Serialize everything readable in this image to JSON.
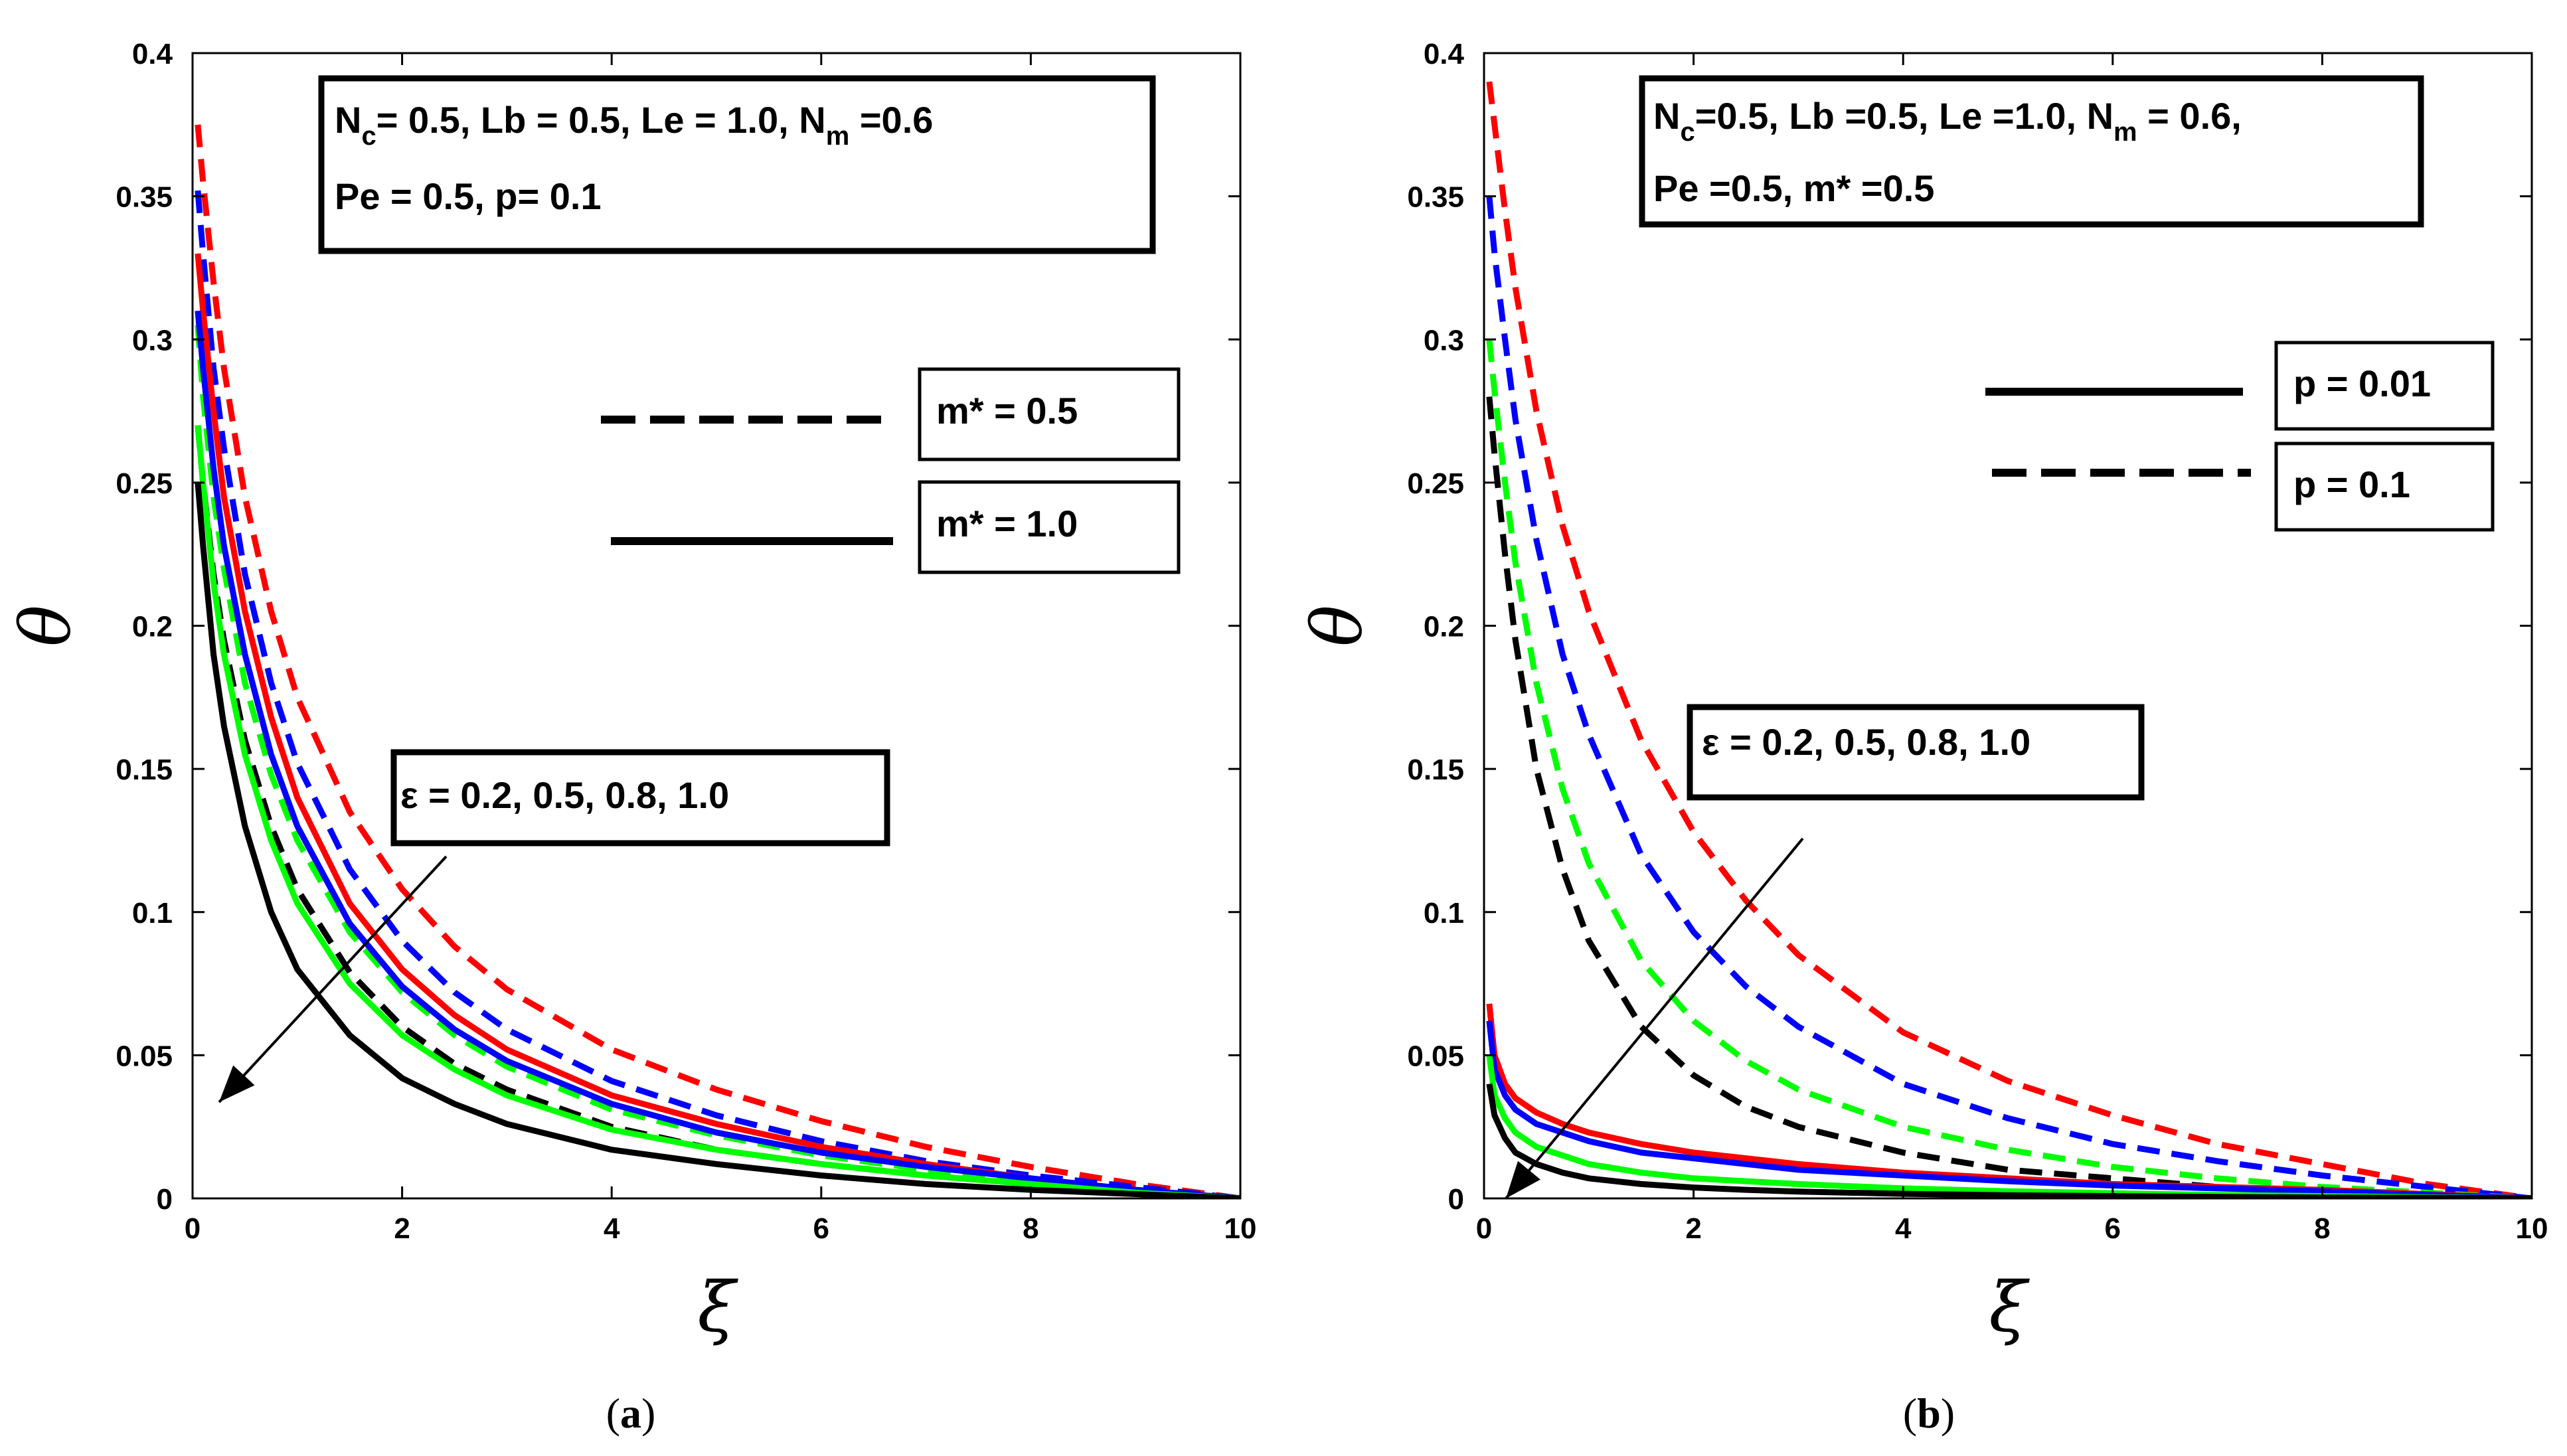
{
  "chart_data": [
    {
      "type": "line",
      "panel": "a",
      "caption": {
        "open": "(",
        "letter": "a",
        "close": ")"
      },
      "xlabel": "ξ",
      "ylabel": "θ",
      "xlim": [
        0,
        10
      ],
      "ylim": [
        0,
        0.4
      ],
      "xticks": [
        "0",
        "2",
        "4",
        "6",
        "8",
        "10"
      ],
      "yticks": [
        "0",
        "0.05",
        "0.1",
        "0.15",
        "0.2",
        "0.25",
        "0.3",
        "0.35",
        "0.4"
      ],
      "params": {
        "line1": {
          "N": "N",
          "c": "c",
          "rest": "= 0.5, Lb = 0.5, Le = 1.0, N",
          "m": "m",
          "tail": " =0.6"
        },
        "line2": "Pe =  0.5, p= 0.1"
      },
      "legend": [
        {
          "label": "m* = 0.5",
          "style": "dashed"
        },
        {
          "label": "m* = 1.0",
          "style": "solid"
        }
      ],
      "annotation": "ε = 0.2, 0.5, 0.8, 1.0",
      "x": [
        0.05,
        0.1,
        0.2,
        0.3,
        0.5,
        0.75,
        1,
        1.5,
        2,
        2.5,
        3,
        4,
        5,
        6,
        7,
        8,
        9,
        10
      ],
      "series": [
        {
          "name": "m* = 0.5, ε = 0.2",
          "color": "#ff0000",
          "style": "dashed",
          "values": [
            0.375,
            0.355,
            0.32,
            0.29,
            0.245,
            0.205,
            0.175,
            0.135,
            0.108,
            0.088,
            0.073,
            0.052,
            0.038,
            0.027,
            0.018,
            0.011,
            0.005,
            0.0
          ]
        },
        {
          "name": "m* = 0.5, ε = 0.5",
          "color": "#0000ff",
          "style": "dashed",
          "values": [
            0.352,
            0.33,
            0.29,
            0.262,
            0.218,
            0.18,
            0.152,
            0.115,
            0.09,
            0.072,
            0.059,
            0.041,
            0.029,
            0.02,
            0.013,
            0.008,
            0.004,
            0.0
          ]
        },
        {
          "name": "m* = 0.5, ε = 0.8",
          "color": "#00ff00",
          "style": "dashed",
          "values": [
            0.305,
            0.28,
            0.245,
            0.22,
            0.18,
            0.148,
            0.125,
            0.093,
            0.072,
            0.057,
            0.046,
            0.031,
            0.022,
            0.015,
            0.01,
            0.006,
            0.003,
            0.0
          ]
        },
        {
          "name": "m* = 0.5, ε = 1.0",
          "color": "#000000",
          "style": "dashed",
          "values": [
            0.27,
            0.25,
            0.218,
            0.195,
            0.16,
            0.13,
            0.108,
            0.079,
            0.06,
            0.047,
            0.038,
            0.025,
            0.017,
            0.012,
            0.008,
            0.005,
            0.002,
            0.0
          ]
        },
        {
          "name": "m* = 1.0, ε = 0.2",
          "color": "#ff0000",
          "style": "solid",
          "values": [
            0.33,
            0.31,
            0.275,
            0.245,
            0.205,
            0.168,
            0.14,
            0.103,
            0.08,
            0.064,
            0.052,
            0.036,
            0.026,
            0.018,
            0.012,
            0.007,
            0.003,
            0.0
          ]
        },
        {
          "name": "m* = 1.0, ε = 0.5",
          "color": "#0000ff",
          "style": "solid",
          "values": [
            0.31,
            0.29,
            0.255,
            0.228,
            0.19,
            0.155,
            0.13,
            0.096,
            0.074,
            0.059,
            0.048,
            0.033,
            0.023,
            0.016,
            0.011,
            0.007,
            0.003,
            0.0
          ]
        },
        {
          "name": "m* = 1.0, ε = 0.8",
          "color": "#00ff00",
          "style": "solid",
          "values": [
            0.27,
            0.25,
            0.215,
            0.19,
            0.155,
            0.125,
            0.103,
            0.075,
            0.057,
            0.045,
            0.036,
            0.024,
            0.017,
            0.012,
            0.008,
            0.005,
            0.002,
            0.0
          ]
        },
        {
          "name": "m* = 1.0, ε = 1.0",
          "color": "#000000",
          "style": "solid",
          "values": [
            0.25,
            0.228,
            0.19,
            0.165,
            0.13,
            0.1,
            0.08,
            0.057,
            0.042,
            0.033,
            0.026,
            0.017,
            0.012,
            0.008,
            0.005,
            0.003,
            0.0015,
            0.0
          ]
        }
      ]
    },
    {
      "type": "line",
      "panel": "b",
      "caption": {
        "open": "(",
        "letter": "b",
        "close": ")"
      },
      "xlabel": "ξ",
      "ylabel": "θ",
      "xlim": [
        0,
        10
      ],
      "ylim": [
        0,
        0.4
      ],
      "xticks": [
        "0",
        "2",
        "4",
        "6",
        "8",
        "10"
      ],
      "yticks": [
        "0",
        "0.05",
        "0.1",
        "0.15",
        "0.2",
        "0.25",
        "0.3",
        "0.35",
        "0.4"
      ],
      "params": {
        "line1": {
          "N": "N",
          "c": "c",
          "rest": "=0.5, Lb =0.5, Le =1.0, N",
          "m": "m",
          "tail": " = 0.6,"
        },
        "line2": "Pe =0.5, m* =0.5"
      },
      "legend": [
        {
          "label": "p = 0.01",
          "style": "solid"
        },
        {
          "label": "p = 0.1",
          "style": "dashed"
        }
      ],
      "annotation": "ε = 0.2, 0.5, 0.8, 1.0",
      "x": [
        0.05,
        0.1,
        0.2,
        0.3,
        0.5,
        0.75,
        1,
        1.5,
        2,
        2.5,
        3,
        4,
        5,
        6,
        7,
        8,
        9,
        10
      ],
      "series": [
        {
          "name": "p = 0.1, ε = 0.2",
          "color": "#ff0000",
          "style": "dashed",
          "values": [
            0.39,
            0.375,
            0.345,
            0.318,
            0.275,
            0.235,
            0.205,
            0.16,
            0.128,
            0.104,
            0.085,
            0.058,
            0.041,
            0.029,
            0.019,
            0.012,
            0.005,
            0.0
          ]
        },
        {
          "name": "p = 0.1, ε = 0.5",
          "color": "#0000ff",
          "style": "dashed",
          "values": [
            0.35,
            0.33,
            0.3,
            0.272,
            0.23,
            0.19,
            0.162,
            0.12,
            0.093,
            0.074,
            0.06,
            0.04,
            0.028,
            0.019,
            0.013,
            0.008,
            0.004,
            0.0
          ]
        },
        {
          "name": "p = 0.1, ε = 0.8",
          "color": "#00ff00",
          "style": "dashed",
          "values": [
            0.3,
            0.282,
            0.25,
            0.222,
            0.18,
            0.143,
            0.117,
            0.083,
            0.062,
            0.048,
            0.038,
            0.025,
            0.017,
            0.011,
            0.007,
            0.004,
            0.002,
            0.0
          ]
        },
        {
          "name": "p = 0.1, ε = 1.0",
          "color": "#000000",
          "style": "dashed",
          "values": [
            0.28,
            0.26,
            0.225,
            0.195,
            0.15,
            0.115,
            0.09,
            0.06,
            0.043,
            0.032,
            0.025,
            0.016,
            0.01,
            0.007,
            0.004,
            0.002,
            0.001,
            0.0
          ]
        },
        {
          "name": "p = 0.01, ε = 0.2",
          "color": "#ff0000",
          "style": "solid",
          "values": [
            0.068,
            0.05,
            0.04,
            0.035,
            0.03,
            0.026,
            0.023,
            0.019,
            0.016,
            0.014,
            0.012,
            0.009,
            0.007,
            0.005,
            0.004,
            0.003,
            0.0015,
            0.0
          ]
        },
        {
          "name": "p = 0.01, ε = 0.5",
          "color": "#0000ff",
          "style": "solid",
          "values": [
            0.062,
            0.045,
            0.036,
            0.031,
            0.026,
            0.023,
            0.02,
            0.016,
            0.014,
            0.012,
            0.01,
            0.008,
            0.006,
            0.0045,
            0.0035,
            0.0025,
            0.0012,
            0.0
          ]
        },
        {
          "name": "p = 0.01, ε = 0.8",
          "color": "#00ff00",
          "style": "solid",
          "values": [
            0.05,
            0.036,
            0.028,
            0.023,
            0.018,
            0.015,
            0.012,
            0.009,
            0.007,
            0.006,
            0.005,
            0.0035,
            0.0025,
            0.0018,
            0.0012,
            0.0008,
            0.0004,
            0.0
          ]
        },
        {
          "name": "p = 0.01, ε = 1.0",
          "color": "#000000",
          "style": "solid",
          "values": [
            0.04,
            0.029,
            0.021,
            0.016,
            0.012,
            0.009,
            0.007,
            0.005,
            0.0038,
            0.003,
            0.0024,
            0.0016,
            0.0011,
            0.0008,
            0.0005,
            0.0003,
            0.0002,
            0.0
          ]
        }
      ]
    }
  ]
}
